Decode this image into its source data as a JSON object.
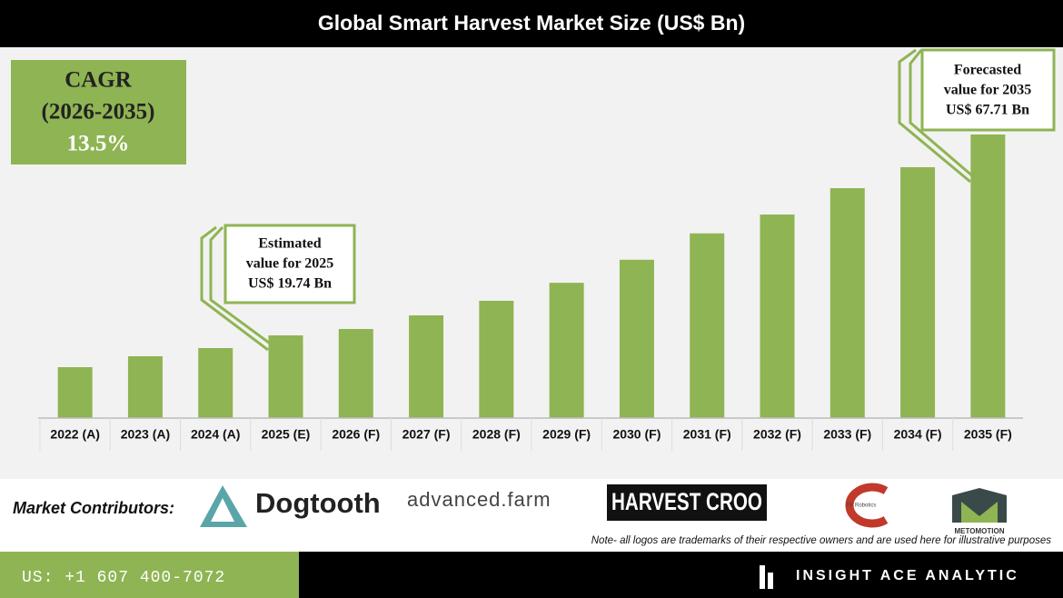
{
  "header": {
    "title": "Global Smart Harvest Market Size (US$ Bn)"
  },
  "cagr": {
    "label": "CAGR",
    "period": "(2026-2035)",
    "value": "13.5%"
  },
  "chart_data": {
    "type": "bar",
    "categories": [
      "2022 (A)",
      "2023 (A)",
      "2024 (A)",
      "2025 (E)",
      "2026 (F)",
      "2027 (F)",
      "2028 (F)",
      "2029 (F)",
      "2030 (F)",
      "2031 (F)",
      "2032 (F)",
      "2033 (F)",
      "2034 (F)",
      "2035 (F)"
    ],
    "values": [
      12.15,
      14.76,
      16.71,
      19.74,
      21.27,
      24.52,
      28.0,
      32.3,
      37.8,
      44.1,
      48.6,
      54.9,
      59.9,
      67.71
    ],
    "color": "#8fb453",
    "annotations": [
      {
        "lines": [
          "Estimated",
          "value for 2025",
          "US$ 19.74 Bn"
        ]
      },
      {
        "lines": [
          "Forecasted",
          "value for 2035",
          "US$ 67.71 Bn"
        ]
      }
    ]
  },
  "contributors": {
    "label": "Market Contributors:",
    "logos": [
      "Dogtooth",
      "advanced.farm",
      "HARVEST CROO",
      "FF Robotics",
      "METOMOTION"
    ],
    "note": "Note- all logos are trademarks of their respective owners and are used here for illustrative purposes"
  },
  "footer": {
    "phone": "US: +1 607 400-7072",
    "brand": "INSIGHT ACE ANALYTIC"
  }
}
